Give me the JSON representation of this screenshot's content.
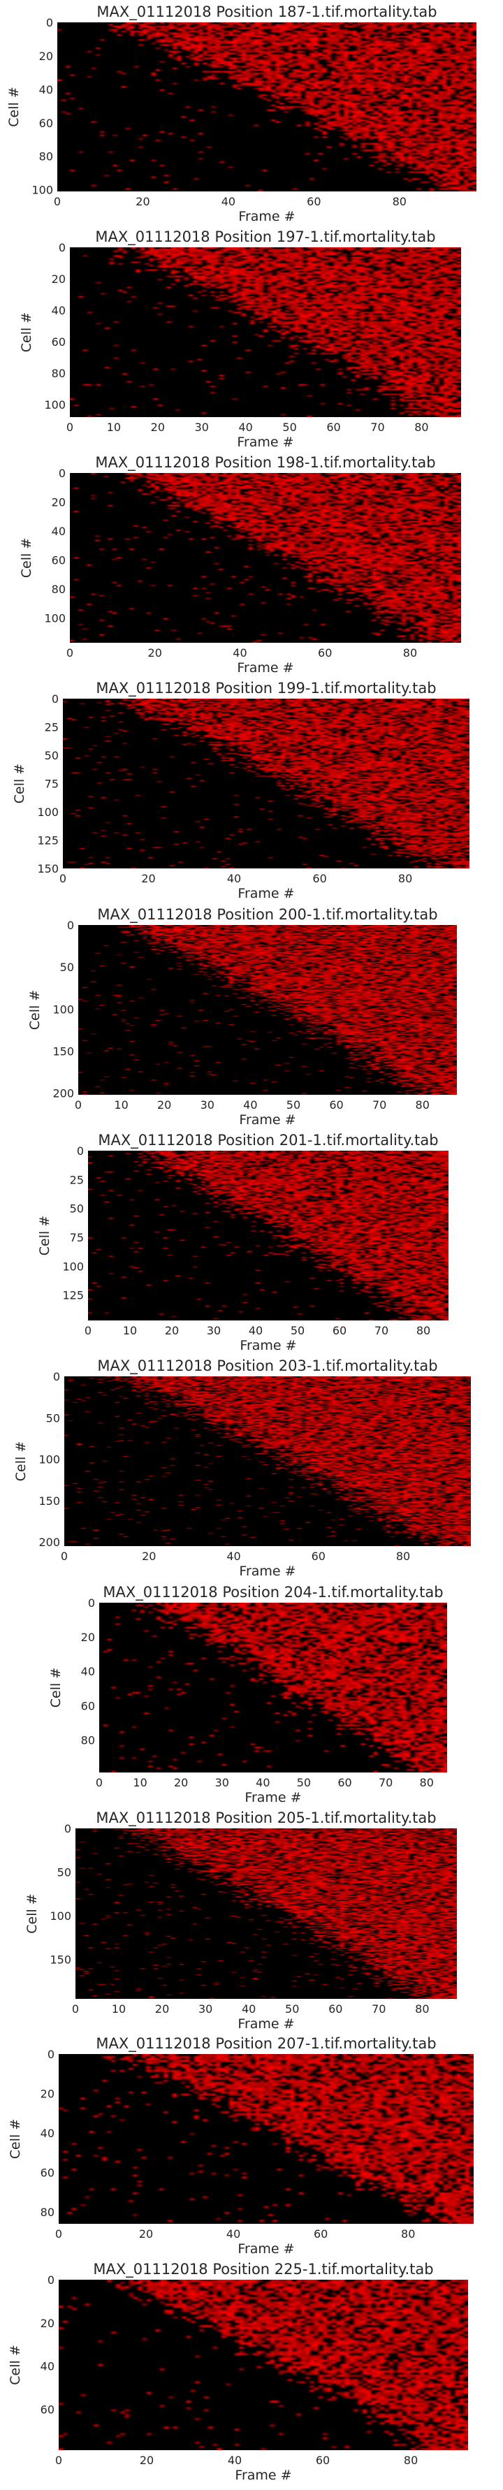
{
  "chart_data": [
    {
      "type": "heatmap",
      "title": "MAX_01112018 Position 187-1.tif.mortality.tab",
      "xlabel": "Frame #",
      "ylabel": "Cell #",
      "n_frames": 98,
      "n_cells": 101,
      "xticks": [
        0,
        20,
        40,
        60,
        80
      ],
      "yticks": [
        0,
        20,
        40,
        60,
        80,
        100
      ],
      "colormap": [
        "#000000",
        "#ff0000"
      ]
    },
    {
      "type": "heatmap",
      "title": "MAX_01112018 Position 197-1.tif.mortality.tab",
      "xlabel": "Frame #",
      "ylabel": "Cell #",
      "n_frames": 89,
      "n_cells": 108,
      "xticks": [
        0,
        10,
        20,
        30,
        40,
        50,
        60,
        70,
        80
      ],
      "yticks": [
        0,
        20,
        40,
        60,
        80,
        100
      ],
      "colormap": [
        "#000000",
        "#ff0000"
      ]
    },
    {
      "type": "heatmap",
      "title": "MAX_01112018 Position 198-1.tif.mortality.tab",
      "xlabel": "Frame #",
      "ylabel": "Cell #",
      "n_frames": 92,
      "n_cells": 117,
      "xticks": [
        0,
        20,
        40,
        60,
        80
      ],
      "yticks": [
        0,
        20,
        40,
        60,
        80,
        100
      ],
      "colormap": [
        "#000000",
        "#ff0000"
      ]
    },
    {
      "type": "heatmap",
      "title": "MAX_01112018 Position 199-1.tif.mortality.tab",
      "xlabel": "Frame #",
      "ylabel": "Cell #",
      "n_frames": 95,
      "n_cells": 150,
      "xticks": [
        0,
        20,
        40,
        60,
        80
      ],
      "yticks": [
        0,
        25,
        50,
        75,
        100,
        125,
        150
      ],
      "colormap": [
        "#000000",
        "#ff0000"
      ]
    },
    {
      "type": "heatmap",
      "title": "MAX_01112018 Position 200-1.tif.mortality.tab",
      "xlabel": "Frame #",
      "ylabel": "Cell #",
      "n_frames": 88,
      "n_cells": 202,
      "xticks": [
        0,
        10,
        20,
        30,
        40,
        50,
        60,
        70,
        80
      ],
      "yticks": [
        0,
        50,
        100,
        150,
        200
      ],
      "colormap": [
        "#000000",
        "#ff0000"
      ]
    },
    {
      "type": "heatmap",
      "title": "MAX_01112018 Position 201-1.tif.mortality.tab",
      "xlabel": "Frame #",
      "ylabel": "Cell #",
      "n_frames": 86,
      "n_cells": 147,
      "xticks": [
        0,
        10,
        20,
        30,
        40,
        50,
        60,
        70,
        80
      ],
      "yticks": [
        0,
        25,
        50,
        75,
        100,
        125
      ],
      "colormap": [
        "#000000",
        "#ff0000"
      ]
    },
    {
      "type": "heatmap",
      "title": "MAX_01112018 Position 203-1.tif.mortality.tab",
      "xlabel": "Frame #",
      "ylabel": "Cell #",
      "n_frames": 96,
      "n_cells": 205,
      "xticks": [
        0,
        20,
        40,
        60,
        80
      ],
      "yticks": [
        0,
        50,
        100,
        150,
        200
      ],
      "colormap": [
        "#000000",
        "#ff0000"
      ]
    },
    {
      "type": "heatmap",
      "title": "MAX_01112018 Position 204-1.tif.mortality.tab",
      "xlabel": "Frame #",
      "ylabel": "Cell #",
      "n_frames": 85,
      "n_cells": 99,
      "xticks": [
        0,
        10,
        20,
        30,
        40,
        50,
        60,
        70,
        80
      ],
      "yticks": [
        0,
        20,
        40,
        60,
        80
      ],
      "colormap": [
        "#000000",
        "#ff0000"
      ]
    },
    {
      "type": "heatmap",
      "title": "MAX_01112018 Position 205-1.tif.mortality.tab",
      "xlabel": "Frame #",
      "ylabel": "Cell #",
      "n_frames": 88,
      "n_cells": 195,
      "xticks": [
        0,
        10,
        20,
        30,
        40,
        50,
        60,
        70,
        80
      ],
      "yticks": [
        0,
        50,
        100,
        150
      ],
      "colormap": [
        "#000000",
        "#ff0000"
      ]
    },
    {
      "type": "heatmap",
      "title": "MAX_01112018 Position 207-1.tif.mortality.tab",
      "xlabel": "Frame #",
      "ylabel": "Cell #",
      "n_frames": 95,
      "n_cells": 86,
      "xticks": [
        0,
        20,
        40,
        60,
        80
      ],
      "yticks": [
        0,
        20,
        40,
        60,
        80
      ],
      "colormap": [
        "#000000",
        "#ff0000"
      ]
    },
    {
      "type": "heatmap",
      "title": "MAX_01112018 Position 225-1.tif.mortality.tab",
      "xlabel": "Frame #",
      "ylabel": "Cell #",
      "n_frames": 93,
      "n_cells": 79,
      "xticks": [
        0,
        20,
        40,
        60,
        80
      ],
      "yticks": [
        0,
        20,
        40,
        60
      ],
      "colormap": [
        "#000000",
        "#ff0000"
      ]
    }
  ]
}
